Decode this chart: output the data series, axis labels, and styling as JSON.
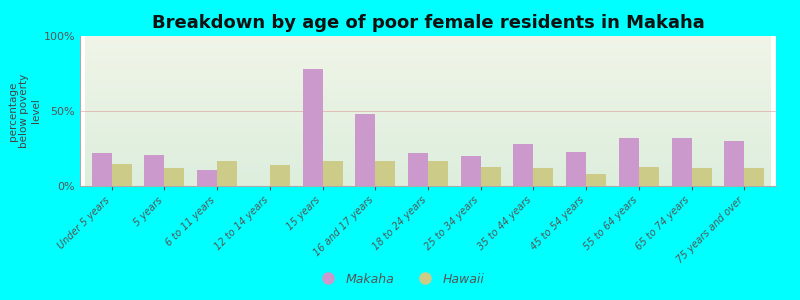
{
  "title": "Breakdown by age of poor female residents in Makaha",
  "ylabel": "percentage\nbelow poverty\nlevel",
  "categories": [
    "Under 5 years",
    "5 years",
    "6 to 11 years",
    "12 to 14 years",
    "15 years",
    "16 and 17 years",
    "18 to 24 years",
    "25 to 34 years",
    "35 to 44 years",
    "45 to 54 years",
    "55 to 64 years",
    "65 to 74 years",
    "75 years and over"
  ],
  "makaha_values": [
    22,
    21,
    11,
    0,
    78,
    48,
    22,
    20,
    28,
    23,
    32,
    32,
    30
  ],
  "hawaii_values": [
    15,
    12,
    17,
    14,
    17,
    17,
    17,
    13,
    12,
    8,
    13,
    12,
    12
  ],
  "makaha_color": "#cc99cc",
  "hawaii_color": "#cccc88",
  "bg_color_top": "#ddeedd",
  "bg_color_bottom": "#f0f5e8",
  "bar_width": 0.38,
  "ylim": [
    0,
    100
  ],
  "yticks": [
    0,
    50,
    100
  ],
  "ytick_labels": [
    "0%",
    "50%",
    "100%"
  ],
  "legend_makaha": "Makaha",
  "legend_hawaii": "Hawaii",
  "background_outer": "#00ffff",
  "title_fontsize": 13
}
